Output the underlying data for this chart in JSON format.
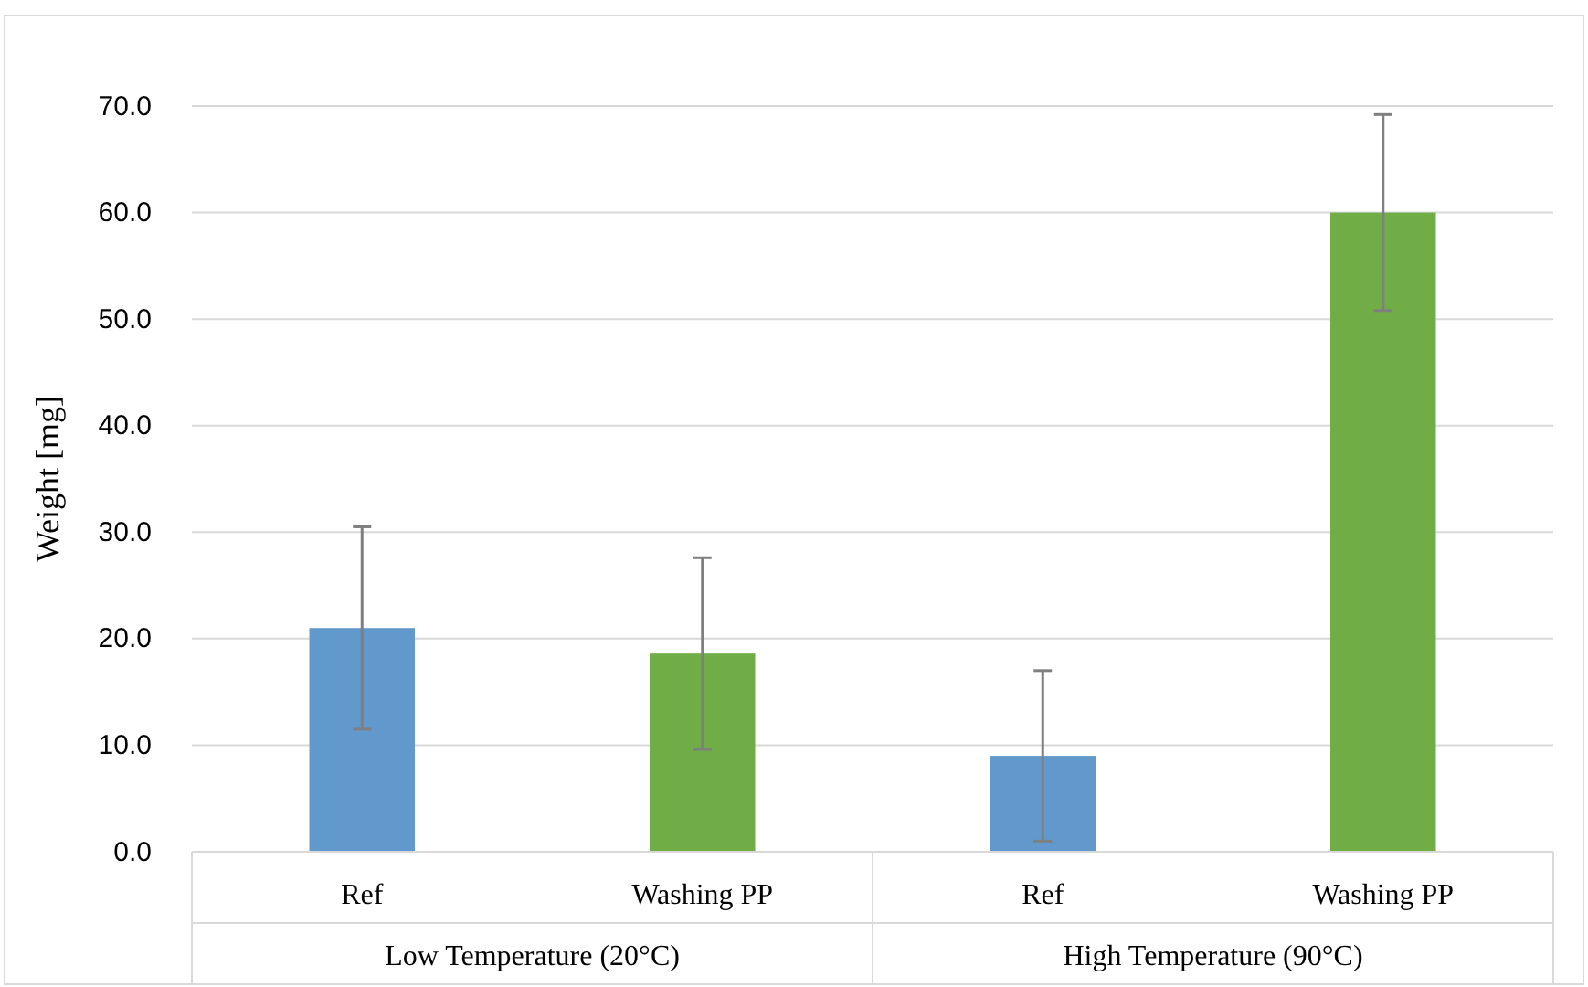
{
  "chart_data": {
    "type": "bar",
    "ylabel": "Weight [mg]",
    "categories": [
      "Ref",
      "Washing PP",
      "Ref",
      "Washing PP"
    ],
    "values": [
      21.0,
      18.6,
      9.0,
      60.0
    ],
    "errors": [
      9.5,
      9.0,
      8.0,
      9.2
    ],
    "colors": [
      "#6199cc",
      "#70ad47",
      "#6199cc",
      "#70ad47"
    ],
    "ylim": [
      0,
      70
    ],
    "yticks": [
      {
        "value": 0,
        "label": "0.0"
      },
      {
        "value": 10,
        "label": "10.0"
      },
      {
        "value": 20,
        "label": "20.0"
      },
      {
        "value": 30,
        "label": "30.0"
      },
      {
        "value": 40,
        "label": "40.0"
      },
      {
        "value": 50,
        "label": "50.0"
      },
      {
        "value": 60,
        "label": "60.0"
      },
      {
        "value": 70,
        "label": "70.0"
      }
    ],
    "grid": "y",
    "annotations": [
      "Low Temperature (20°C)",
      "High Temperature (90°C)"
    ]
  }
}
